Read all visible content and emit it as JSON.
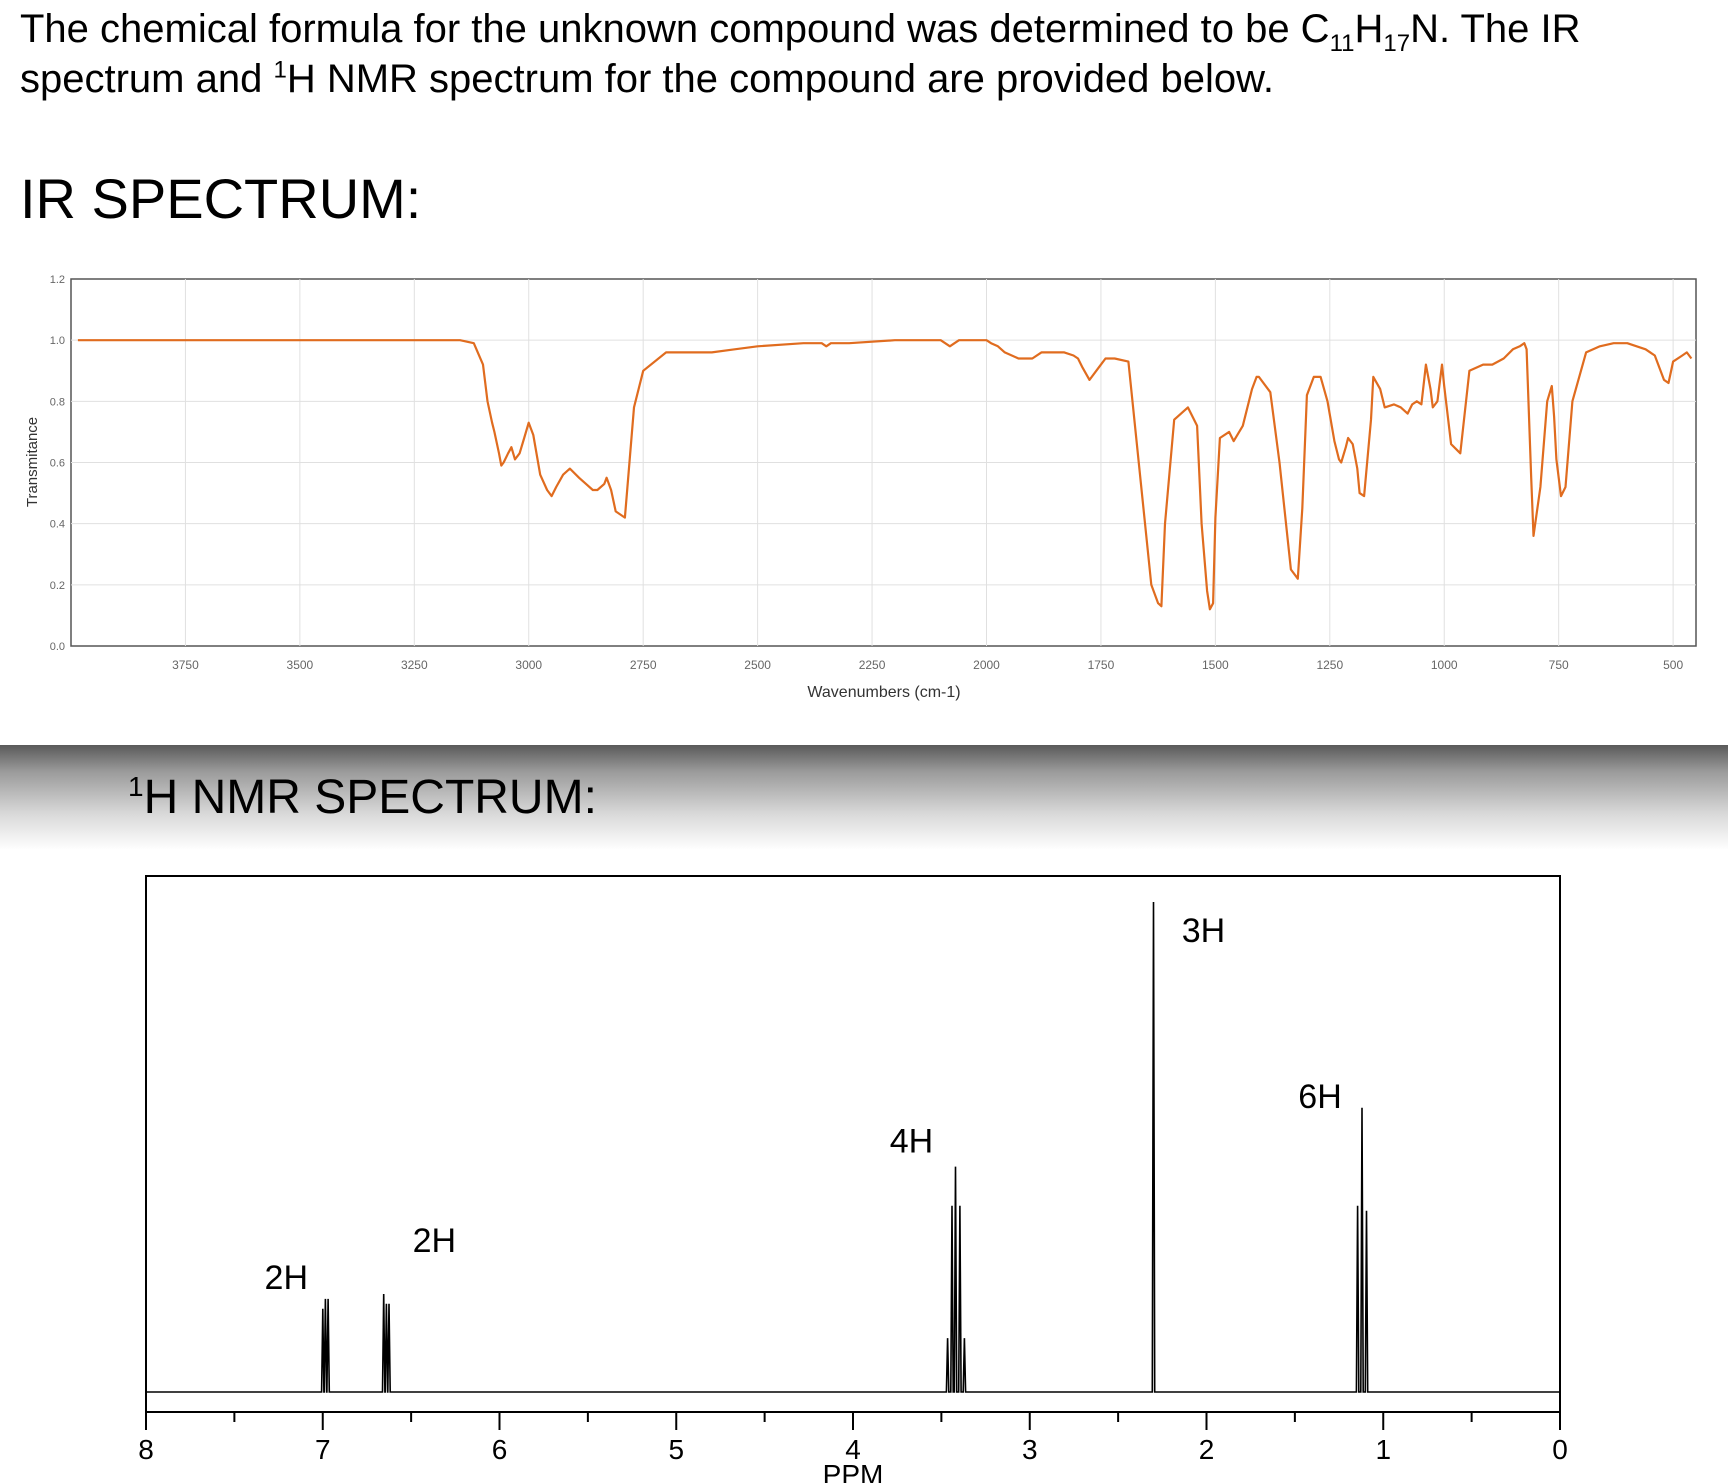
{
  "intro": {
    "text_a": "The chemical formula for the unknown compound was determined to be C",
    "sub_c": "11",
    "text_b": "H",
    "sub_h": "17",
    "text_c": "N. The IR spectrum and ",
    "sup_one": "1",
    "text_d": "H NMR spectrum for the compound are provided below."
  },
  "ir_heading": "IR SPECTRUM:",
  "nmr_heading": {
    "sup": "1",
    "text": "H NMR SPECTRUM:"
  },
  "colors": {
    "ir_line": "#e06c1f",
    "grid": "#e0e0e0",
    "axis": "#555555",
    "nmr_line": "#000000"
  },
  "chart_data": [
    {
      "type": "line",
      "xlabel": "Wavenumbers (cm-1)",
      "ylabel": "Transmitance",
      "xlim": [
        4000,
        450
      ],
      "x_reversed": true,
      "ylim": [
        0.0,
        1.2
      ],
      "x_ticks": [
        3750,
        3500,
        3250,
        3000,
        2750,
        2500,
        2250,
        2000,
        1750,
        1500,
        1250,
        1000,
        750,
        500
      ],
      "y_ticks": [
        "0.0",
        "0.2",
        "0.4",
        "0.6",
        "0.8",
        "1.0",
        "1.2"
      ],
      "grid": true,
      "series": [
        {
          "x": [
            3985,
            3900,
            3800,
            3700,
            3600,
            3500,
            3400,
            3300,
            3250,
            3150,
            3120,
            3100,
            3090,
            3080,
            3075,
            3065,
            3060,
            3055,
            3045,
            3038,
            3030,
            3020,
            3010,
            3000,
            2990,
            2975,
            2960,
            2950,
            2940,
            2925,
            2910,
            2890,
            2875,
            2860,
            2850,
            2835,
            2830,
            2820,
            2810,
            2790,
            2770,
            2750,
            2700,
            2650,
            2600,
            2550,
            2500,
            2400,
            2360,
            2350,
            2340,
            2300,
            2200,
            2100,
            2080,
            2070,
            2060,
            2020,
            2000,
            1990,
            1975,
            1960,
            1930,
            1900,
            1880,
            1860,
            1830,
            1810,
            1800,
            1790,
            1775,
            1755,
            1740,
            1720,
            1690,
            1640,
            1625,
            1618,
            1610,
            1590,
            1560,
            1540,
            1530,
            1518,
            1512,
            1505,
            1500,
            1490,
            1470,
            1460,
            1440,
            1420,
            1410,
            1405,
            1380,
            1360,
            1335,
            1320,
            1310,
            1300,
            1285,
            1270,
            1255,
            1240,
            1230,
            1225,
            1215,
            1210,
            1200,
            1190,
            1185,
            1175,
            1160,
            1155,
            1140,
            1130,
            1110,
            1095,
            1080,
            1070,
            1060,
            1050,
            1040,
            1030,
            1025,
            1015,
            1005,
            1000,
            985,
            965,
            945,
            915,
            895,
            870,
            850,
            835,
            825,
            820,
            810,
            805,
            790,
            775,
            765,
            760,
            755,
            745,
            735,
            720,
            690,
            660,
            630,
            600,
            560,
            540,
            520,
            510,
            500,
            480,
            470,
            460
          ],
          "y": [
            1.0,
            1.0,
            1.0,
            1.0,
            1.0,
            1.0,
            1.0,
            1.0,
            1.0,
            1.0,
            0.99,
            0.92,
            0.8,
            0.73,
            0.7,
            0.63,
            0.59,
            0.6,
            0.63,
            0.65,
            0.61,
            0.63,
            0.68,
            0.73,
            0.69,
            0.56,
            0.51,
            0.49,
            0.52,
            0.56,
            0.58,
            0.55,
            0.53,
            0.51,
            0.51,
            0.53,
            0.55,
            0.51,
            0.44,
            0.42,
            0.78,
            0.9,
            0.96,
            0.96,
            0.96,
            0.97,
            0.98,
            0.99,
            0.99,
            0.98,
            0.99,
            0.99,
            1.0,
            1.0,
            0.98,
            0.99,
            1.0,
            1.0,
            1.0,
            0.99,
            0.98,
            0.96,
            0.94,
            0.94,
            0.96,
            0.96,
            0.96,
            0.95,
            0.94,
            0.91,
            0.87,
            0.91,
            0.94,
            0.94,
            0.93,
            0.2,
            0.14,
            0.13,
            0.4,
            0.74,
            0.78,
            0.72,
            0.4,
            0.18,
            0.12,
            0.14,
            0.42,
            0.68,
            0.7,
            0.67,
            0.72,
            0.84,
            0.88,
            0.88,
            0.83,
            0.6,
            0.25,
            0.22,
            0.45,
            0.82,
            0.88,
            0.88,
            0.8,
            0.67,
            0.61,
            0.6,
            0.65,
            0.68,
            0.66,
            0.58,
            0.5,
            0.49,
            0.74,
            0.88,
            0.84,
            0.78,
            0.79,
            0.78,
            0.76,
            0.79,
            0.8,
            0.79,
            0.92,
            0.84,
            0.78,
            0.8,
            0.92,
            0.85,
            0.66,
            0.63,
            0.9,
            0.92,
            0.92,
            0.94,
            0.97,
            0.98,
            0.99,
            0.97,
            0.55,
            0.36,
            0.52,
            0.8,
            0.85,
            0.75,
            0.61,
            0.49,
            0.52,
            0.8,
            0.96,
            0.98,
            0.99,
            0.99,
            0.97,
            0.95,
            0.87,
            0.86,
            0.93,
            0.95,
            0.96,
            0.94
          ]
        }
      ]
    },
    {
      "type": "line",
      "xlabel": "PPM",
      "xlim": [
        8,
        0
      ],
      "x_reversed": true,
      "x_ticks": [
        "8",
        "7",
        "6",
        "5",
        "4",
        "3",
        "2",
        "1",
        "0"
      ],
      "peaks": [
        {
          "label": "2H",
          "center": 6.98,
          "lines": [
            7.0,
            6.985,
            6.97
          ],
          "heights": [
            0.17,
            0.19,
            0.19
          ]
        },
        {
          "label": "2H",
          "center": 6.64,
          "lines": [
            6.655,
            6.64,
            6.625
          ],
          "heights": [
            0.2,
            0.18,
            0.18
          ]
        },
        {
          "label": "4H",
          "center": 3.42,
          "lines": [
            3.465,
            3.44,
            3.42,
            3.395,
            3.37
          ],
          "heights": [
            0.11,
            0.38,
            0.46,
            0.38,
            0.11
          ]
        },
        {
          "label": "3H",
          "center": 2.3,
          "lines": [
            2.3
          ],
          "heights": [
            1.0
          ]
        },
        {
          "label": "6H",
          "center": 1.12,
          "lines": [
            1.145,
            1.12,
            1.095
          ],
          "heights": [
            0.38,
            0.58,
            0.37
          ]
        }
      ]
    }
  ]
}
